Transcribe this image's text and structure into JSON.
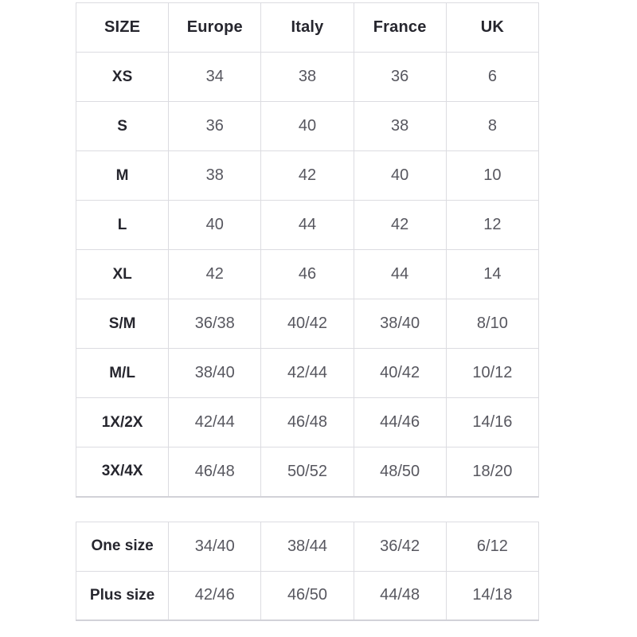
{
  "colors": {
    "background": "#ffffff",
    "header_text": "#26262e",
    "value_text": "#57575f",
    "border": "#dcdce1"
  },
  "size_table": {
    "header": [
      "SIZE",
      "Europe",
      "Italy",
      "France",
      "UK"
    ],
    "rows": [
      [
        "XS",
        "34",
        "38",
        "36",
        "6"
      ],
      [
        "S",
        "36",
        "40",
        "38",
        "8"
      ],
      [
        "M",
        "38",
        "42",
        "40",
        "10"
      ],
      [
        "L",
        "40",
        "44",
        "42",
        "12"
      ],
      [
        "XL",
        "42",
        "46",
        "44",
        "14"
      ],
      [
        "S/M",
        "36/38",
        "40/42",
        "38/40",
        "8/10"
      ],
      [
        "M/L",
        "38/40",
        "42/44",
        "40/42",
        "10/12"
      ],
      [
        "1X/2X",
        "42/44",
        "46/48",
        "44/46",
        "14/16"
      ],
      [
        "3X/4X",
        "46/48",
        "50/52",
        "48/50",
        "18/20"
      ]
    ]
  },
  "special_size_table": {
    "rows": [
      [
        "One size",
        "34/40",
        "38/44",
        "36/42",
        "6/12"
      ],
      [
        "Plus size",
        "42/46",
        "46/50",
        "44/48",
        "14/18"
      ]
    ]
  }
}
